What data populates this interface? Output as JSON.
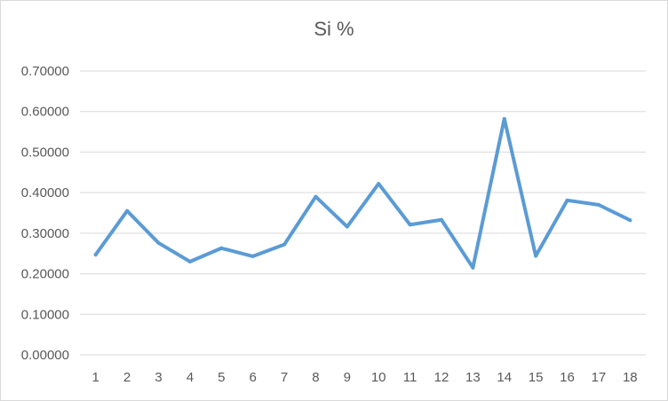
{
  "chart_data": {
    "type": "line",
    "title": "Si %",
    "xlabel": "",
    "ylabel": "",
    "x": [
      "1",
      "2",
      "3",
      "4",
      "5",
      "6",
      "7",
      "8",
      "9",
      "10",
      "11",
      "12",
      "13",
      "14",
      "15",
      "16",
      "17",
      "18"
    ],
    "series": [
      {
        "values": [
          0.247,
          0.355,
          0.276,
          0.23,
          0.263,
          0.243,
          0.272,
          0.39,
          0.316,
          0.422,
          0.321,
          0.333,
          0.215,
          0.582,
          0.244,
          0.381,
          0.37,
          0.332
        ],
        "color": "#5b9bd5"
      }
    ],
    "ylim": [
      0,
      0.7
    ],
    "yticks": [
      "0.00000",
      "0.10000",
      "0.20000",
      "0.30000",
      "0.40000",
      "0.50000",
      "0.60000",
      "0.70000"
    ],
    "grid": true,
    "legend": "none",
    "colors": {
      "line": "#5b9bd5",
      "grid": "#d9d9d9",
      "text": "#595959"
    }
  }
}
